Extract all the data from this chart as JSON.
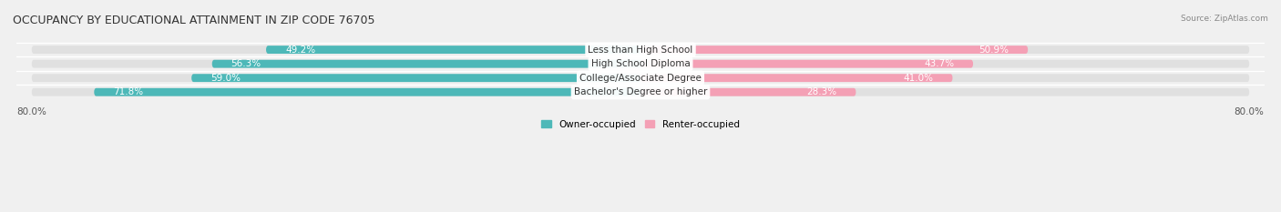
{
  "title": "OCCUPANCY BY EDUCATIONAL ATTAINMENT IN ZIP CODE 76705",
  "source": "Source: ZipAtlas.com",
  "categories": [
    "Less than High School",
    "High School Diploma",
    "College/Associate Degree",
    "Bachelor's Degree or higher"
  ],
  "owner_values": [
    49.2,
    56.3,
    59.0,
    71.8
  ],
  "renter_values": [
    50.9,
    43.7,
    41.0,
    28.3
  ],
  "owner_color": "#4db8b8",
  "renter_color": "#f4a0b5",
  "background_color": "#f0f0f0",
  "bar_background": "#e8e8e8",
  "xlim_left": -80.0,
  "xlim_right": 80.0,
  "x_tick_left": -80.0,
  "x_tick_right": 80.0,
  "bar_height": 0.55,
  "label_fontsize": 7.5,
  "title_fontsize": 9,
  "legend_fontsize": 7.5
}
